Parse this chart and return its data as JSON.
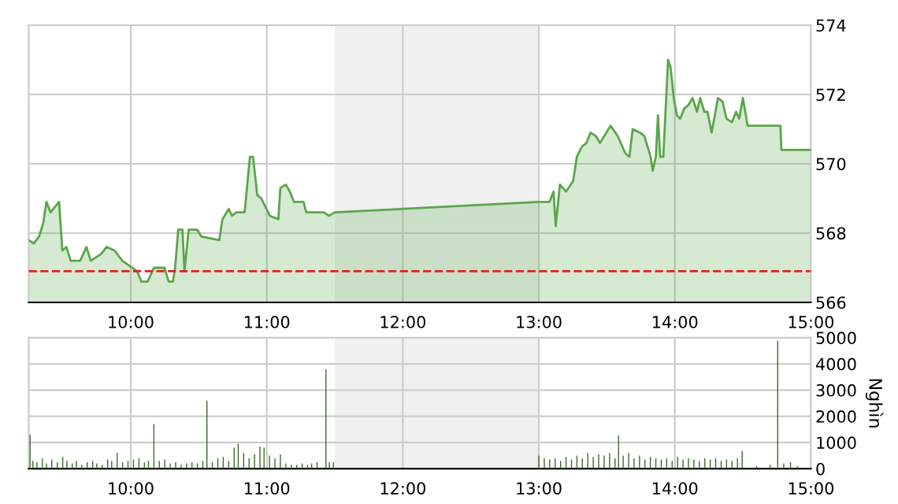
{
  "chart_data": [
    {
      "type": "area",
      "x": [
        9.25,
        9.287,
        9.326,
        9.357,
        9.38,
        9.41,
        9.473,
        9.497,
        9.527,
        9.558,
        9.628,
        9.674,
        9.706,
        9.783,
        9.822,
        9.88,
        9.938,
        10.047,
        10.078,
        10.124,
        10.17,
        10.248,
        10.279,
        10.31,
        10.326,
        10.349,
        10.38,
        10.395,
        10.426,
        10.488,
        10.52,
        10.651,
        10.674,
        10.721,
        10.744,
        10.775,
        10.837,
        10.876,
        10.899,
        10.93,
        10.96,
        11.023,
        11.085,
        11.1,
        11.14,
        11.17,
        11.2,
        11.27,
        11.29,
        11.372,
        11.419,
        11.457,
        11.5,
        13.0,
        13.078,
        13.108,
        13.124,
        13.155,
        13.2,
        13.252,
        13.279,
        13.317,
        13.35,
        13.38,
        13.419,
        13.45,
        13.527,
        13.58,
        13.636,
        13.666,
        13.69,
        13.744,
        13.776,
        13.822,
        13.837,
        13.86,
        13.876,
        13.892,
        13.915,
        13.95,
        13.968,
        13.992,
        14.015,
        14.038,
        14.07,
        14.1,
        14.13,
        14.163,
        14.186,
        14.217,
        14.24,
        14.27,
        14.317,
        14.35,
        14.38,
        14.419,
        14.45,
        14.473,
        14.5,
        14.535,
        14.776,
        14.783,
        15.0
      ],
      "series": [
        {
          "color": "#5aa64a",
          "values": [
            567.8,
            567.7,
            567.9,
            568.3,
            568.9,
            568.6,
            568.9,
            567.5,
            567.6,
            567.2,
            567.2,
            567.6,
            567.2,
            567.4,
            567.6,
            567.5,
            567.2,
            566.9,
            566.6,
            566.6,
            567.0,
            567.0,
            566.6,
            566.6,
            567.0,
            568.1,
            568.1,
            566.9,
            568.1,
            568.1,
            567.9,
            567.8,
            568.4,
            568.7,
            568.5,
            568.6,
            568.6,
            570.2,
            570.2,
            569.1,
            569.0,
            568.5,
            568.4,
            569.3,
            569.4,
            569.2,
            568.9,
            568.9,
            568.6,
            568.6,
            568.6,
            568.5,
            568.6,
            568.9,
            568.9,
            569.2,
            568.2,
            569.4,
            569.2,
            569.5,
            570.2,
            570.5,
            570.6,
            570.9,
            570.8,
            570.6,
            571.1,
            570.8,
            570.3,
            570.2,
            571.0,
            570.9,
            570.8,
            570.2,
            569.8,
            570.2,
            571.4,
            570.2,
            570.2,
            573.0,
            572.8,
            571.9,
            571.4,
            571.3,
            571.6,
            571.7,
            571.9,
            571.5,
            571.9,
            571.5,
            571.5,
            570.9,
            571.9,
            571.8,
            571.3,
            571.2,
            571.5,
            571.3,
            571.9,
            571.1,
            571.1,
            570.4,
            570.4
          ]
        }
      ],
      "xlim": [
        9.25,
        15
      ],
      "ylim": [
        566,
        574
      ],
      "yticks": [
        566,
        568,
        570,
        572,
        574
      ],
      "xticks": [
        {
          "value": 10,
          "label": "10:00"
        },
        {
          "value": 11,
          "label": "11:00"
        },
        {
          "value": 12,
          "label": "12:00"
        },
        {
          "value": 13,
          "label": "13:00"
        },
        {
          "value": 14,
          "label": "14:00"
        },
        {
          "value": 15,
          "label": "15:00"
        }
      ],
      "ref_lines": [
        {
          "axis": "y",
          "value": 566.9,
          "color": "#e02020",
          "line_style": "dashed"
        }
      ],
      "bands": [
        {
          "axis": "x",
          "from": 11.5,
          "to": 13,
          "color": "#f0f0f0"
        }
      ],
      "grid": true
    },
    {
      "type": "bar",
      "ylabel": "Nghìn",
      "x": [
        9.26,
        9.28,
        9.31,
        9.35,
        9.38,
        9.42,
        9.46,
        9.5,
        9.53,
        9.57,
        9.6,
        9.64,
        9.68,
        9.72,
        9.75,
        9.79,
        9.83,
        9.86,
        9.9,
        9.94,
        9.98,
        10.02,
        10.06,
        10.1,
        10.13,
        10.17,
        10.21,
        10.25,
        10.29,
        10.33,
        10.37,
        10.41,
        10.45,
        10.49,
        10.53,
        10.56,
        10.6,
        10.64,
        10.68,
        10.72,
        10.76,
        10.79,
        10.83,
        10.87,
        10.91,
        10.95,
        10.98,
        11.02,
        11.06,
        11.1,
        11.14,
        11.18,
        11.22,
        11.26,
        11.3,
        11.33,
        11.37,
        11.435,
        11.46,
        11.49,
        13.0,
        13.04,
        13.08,
        13.12,
        13.16,
        13.2,
        13.24,
        13.28,
        13.32,
        13.36,
        13.4,
        13.44,
        13.48,
        13.52,
        13.56,
        13.586,
        13.62,
        13.66,
        13.7,
        13.74,
        13.78,
        13.82,
        13.86,
        13.9,
        13.94,
        13.98,
        14.02,
        14.06,
        14.1,
        14.14,
        14.18,
        14.22,
        14.26,
        14.3,
        14.34,
        14.38,
        14.42,
        14.46,
        14.495,
        14.6,
        14.7,
        14.756,
        14.8,
        14.85,
        14.9
      ],
      "series": [
        {
          "color": "#3a6b2a",
          "values": [
            1300,
            300,
            250,
            400,
            200,
            350,
            250,
            450,
            300,
            200,
            300,
            150,
            250,
            300,
            200,
            150,
            350,
            300,
            600,
            250,
            300,
            350,
            400,
            250,
            300,
            1700,
            300,
            350,
            200,
            250,
            150,
            200,
            250,
            200,
            300,
            2600,
            250,
            400,
            450,
            300,
            800,
            950,
            600,
            400,
            550,
            850,
            800,
            500,
            400,
            550,
            200,
            150,
            150,
            200,
            150,
            200,
            250,
            3800,
            250,
            250,
            500,
            400,
            350,
            400,
            300,
            450,
            350,
            500,
            400,
            600,
            450,
            550,
            500,
            600,
            400,
            1270,
            500,
            600,
            400,
            500,
            350,
            450,
            400,
            350,
            400,
            300,
            450,
            350,
            400,
            350,
            300,
            400,
            350,
            400,
            300,
            350,
            300,
            400,
            680,
            100,
            150,
            4890,
            200,
            250,
            100
          ]
        }
      ],
      "xlim": [
        9.25,
        15
      ],
      "ylim": [
        0,
        5000
      ],
      "yticks": [
        0,
        1000,
        2000,
        3000,
        4000,
        5000
      ],
      "xticks": [
        {
          "value": 10,
          "label": "10:00"
        },
        {
          "value": 11,
          "label": "11:00"
        },
        {
          "value": 12,
          "label": "12:00"
        },
        {
          "value": 13,
          "label": "13:00"
        },
        {
          "value": 14,
          "label": "14:00"
        },
        {
          "value": 15,
          "label": "15:00"
        }
      ],
      "bands": [
        {
          "axis": "x",
          "from": 11.5,
          "to": 13,
          "color": "#f0f0f0"
        }
      ],
      "grid": true
    }
  ]
}
